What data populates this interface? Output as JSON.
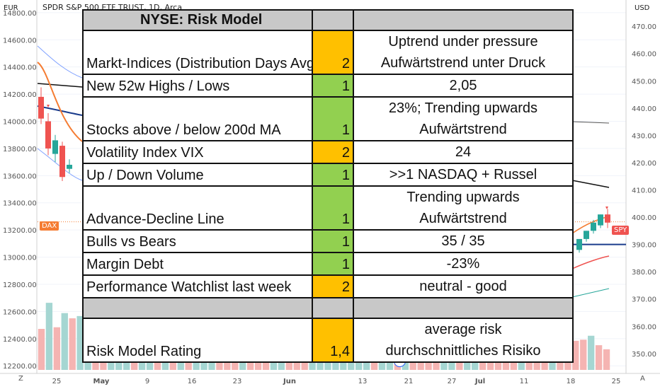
{
  "header": {
    "symbol_text": "SPDR S&P 500 ETF TRUST, 1D, Arca",
    "left_currency": "EUR",
    "right_currency": "USD"
  },
  "badges": {
    "dax": "DAX",
    "spy": "SPY",
    "d_marker": "D"
  },
  "colors": {
    "green_cell": "#92d050",
    "orange_cell": "#ffc000",
    "grey_row": "#c8c8c8",
    "candle_up": "#26a69a",
    "candle_down": "#ef5350",
    "dax_badge": "#f57c32",
    "spy_badge": "#ef5350"
  },
  "risk_table": {
    "title": "NYSE: Risk Model",
    "rows": [
      {
        "label": "Markt-Indices (Distribution Days Avg)",
        "value": "2",
        "color": "orange",
        "comment": [
          "Uptrend under pressure",
          "Aufwärtstrend unter Druck"
        ]
      },
      {
        "label": "New 52w Highs / Lows",
        "value": "1",
        "color": "green",
        "comment": [
          "2,05"
        ]
      },
      {
        "label": "Stocks above / below 200d MA",
        "value": "1",
        "color": "green",
        "comment": [
          "23%; Trending upwards",
          "Aufwärtstrend"
        ]
      },
      {
        "label": "Volatility Index VIX",
        "value": "2",
        "color": "orange",
        "comment": [
          "24"
        ]
      },
      {
        "label": "Up / Down Volume",
        "value": "1",
        "color": "green",
        "comment": [
          ">>1 NASDAQ + Russel"
        ]
      },
      {
        "label": "Advance-Decline Line",
        "value": "1",
        "color": "green",
        "comment": [
          "Trending upwards",
          "Aufwärtstrend"
        ]
      },
      {
        "label": "Bulls vs Bears",
        "value": "1",
        "color": "green",
        "comment": [
          "35 / 35"
        ]
      },
      {
        "label": "Margin Debt",
        "value": "1",
        "color": "green",
        "comment": [
          "-23%"
        ]
      },
      {
        "label": "Performance Watchlist last week",
        "value": "2",
        "color": "orange",
        "comment": [
          "neutral - good"
        ]
      }
    ],
    "rating": {
      "label": "Risk Model Rating",
      "value": "1,4",
      "comment": [
        "average risk",
        "durchschnittliches Risiko"
      ]
    }
  },
  "chart_data": {
    "type": "line",
    "left_axis": {
      "label": "EUR",
      "ticks": [
        12200,
        12400,
        12600,
        12800,
        13000,
        13200,
        13400,
        13600,
        13800,
        14000,
        14200,
        14400,
        14600,
        14800
      ],
      "tick_labels": [
        "12200.00",
        "12400.00",
        "12600.00",
        "12800.00",
        "13000.00",
        "13200.00",
        "13400.00",
        "13600.00",
        "13800.00",
        "14000.00",
        "14200.00",
        "14400.00",
        "14600.00",
        "14800.00"
      ],
      "range": [
        12170,
        14820
      ]
    },
    "right_axis": {
      "label": "USD",
      "ticks": [
        350,
        360,
        370,
        380,
        390,
        400,
        410,
        420,
        430,
        440,
        450,
        460,
        470
      ],
      "tick_labels": [
        "350.00",
        "360.00",
        "370.00",
        "380.00",
        "390.00",
        "400.00",
        "410.00",
        "420.00",
        "430.00",
        "440.00",
        "450.00",
        "460.00",
        "470.00"
      ],
      "range": [
        344,
        476
      ]
    },
    "x_axis": {
      "tick_labels": [
        "Z",
        "25",
        "May",
        "9",
        "16",
        "23",
        "Jun",
        "13",
        "21",
        "27",
        "Jul",
        "11",
        "18",
        "25",
        "A"
      ]
    },
    "left_candles": [
      {
        "o": 14180,
        "h": 14250,
        "c": 14020,
        "l": 13980,
        "up": false
      },
      {
        "o": 14000,
        "h": 14060,
        "c": 13800,
        "l": 13750,
        "up": false
      },
      {
        "o": 13860,
        "h": 13900,
        "c": 13760,
        "l": 13700,
        "up": true
      },
      {
        "o": 13820,
        "h": 13850,
        "c": 13590,
        "l": 13560,
        "up": false
      },
      {
        "o": 13680,
        "h": 13720,
        "c": 13650,
        "l": 13620,
        "up": true
      }
    ],
    "right_candles": [
      {
        "o": 388,
        "h": 390,
        "c": 392,
        "l": 387,
        "up": true
      },
      {
        "o": 392,
        "h": 395,
        "c": 395,
        "l": 391,
        "up": true
      },
      {
        "o": 395,
        "h": 399,
        "c": 398,
        "l": 394,
        "up": true
      },
      {
        "o": 397,
        "h": 401,
        "c": 401,
        "l": 396,
        "up": true
      },
      {
        "o": 401,
        "h": 403,
        "c": 398,
        "l": 396,
        "up": false
      }
    ],
    "volume_bars": 74
  }
}
